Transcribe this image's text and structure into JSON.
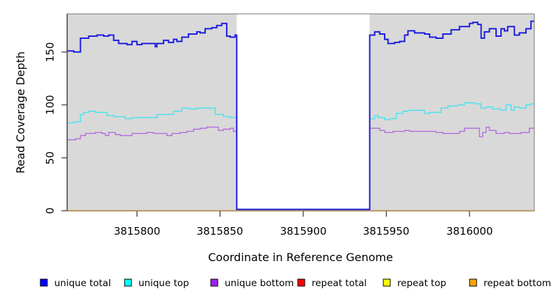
{
  "chart_data": {
    "type": "line",
    "subtype": "step-coverage",
    "title": "",
    "xlabel": "Coordinate in Reference Genome",
    "ylabel": "Read Coverage Depth",
    "xlim": [
      3815758,
      3816039
    ],
    "ylim": [
      0,
      186
    ],
    "x_ticks": [
      3815800,
      3815850,
      3815900,
      3815950,
      3816000
    ],
    "x_tick_labels": [
      "3815800",
      "3815850",
      "3815900",
      "3815950",
      "3816000"
    ],
    "y_ticks": [
      0,
      50,
      100,
      150
    ],
    "y_tick_labels": [
      "0",
      "50",
      "100",
      "150"
    ],
    "grid": false,
    "legend_position": "bottom",
    "plot_bg_color": "#D9D9D9",
    "border_color": "#8A8A8A",
    "axis_color": "#404040",
    "gap_region": [
      3815860,
      3815940
    ],
    "data_regions": [
      [
        3815758,
        3815860
      ],
      [
        3815940,
        3816039
      ]
    ],
    "series": [
      {
        "name": "unique total",
        "color": "#0000FF",
        "line_color": "#1C1CDE",
        "width": 2,
        "gap_lift": 2,
        "regions": [
          [
            [
              3815758,
              151
            ],
            [
              3815762,
              150
            ],
            [
              3815766,
              163
            ],
            [
              3815771,
              165
            ],
            [
              3815776,
              166
            ],
            [
              3815780,
              165
            ],
            [
              3815783,
              166
            ],
            [
              3815786,
              161
            ],
            [
              3815789,
              158
            ],
            [
              3815794,
              157
            ],
            [
              3815797,
              160
            ],
            [
              3815800,
              157
            ],
            [
              3815803,
              158
            ],
            [
              3815811,
              155
            ],
            [
              3815812,
              158
            ],
            [
              3815816,
              161
            ],
            [
              3815819,
              159
            ],
            [
              3815822,
              162
            ],
            [
              3815824,
              160
            ],
            [
              3815827,
              164
            ],
            [
              3815831,
              167
            ],
            [
              3815836,
              169
            ],
            [
              3815838,
              168
            ],
            [
              3815841,
              172
            ],
            [
              3815845,
              173
            ],
            [
              3815848,
              175
            ],
            [
              3815851,
              177
            ],
            [
              3815854,
              165
            ],
            [
              3815856,
              164
            ],
            [
              3815859,
              166
            ]
          ],
          [
            [
              3815940,
              166
            ],
            [
              3815943,
              169
            ],
            [
              3815946,
              167
            ],
            [
              3815949,
              162
            ],
            [
              3815951,
              158
            ],
            [
              3815955,
              159
            ],
            [
              3815958,
              160
            ],
            [
              3815961,
              166
            ],
            [
              3815963,
              170
            ],
            [
              3815967,
              168
            ],
            [
              3815973,
              167
            ],
            [
              3815976,
              164
            ],
            [
              3815980,
              163
            ],
            [
              3815984,
              167
            ],
            [
              3815989,
              171
            ],
            [
              3815994,
              174
            ],
            [
              3816000,
              177
            ],
            [
              3816002,
              178
            ],
            [
              3816005,
              176
            ],
            [
              3816007,
              163
            ],
            [
              3816009,
              169
            ],
            [
              3816012,
              172
            ],
            [
              3816016,
              165
            ],
            [
              3816019,
              172
            ],
            [
              3816021,
              170
            ],
            [
              3816023,
              174
            ],
            [
              3816027,
              166
            ],
            [
              3816030,
              168
            ],
            [
              3816034,
              172
            ],
            [
              3816037,
              179
            ]
          ]
        ]
      },
      {
        "name": "unique top",
        "color": "#00FFFF",
        "line_color": "#4FE2EC",
        "width": 1.5,
        "gap_lift": 1,
        "regions": [
          [
            [
              3815758,
              83
            ],
            [
              3815762,
              84
            ],
            [
              3815766,
              91
            ],
            [
              3815768,
              93
            ],
            [
              3815771,
              94
            ],
            [
              3815775,
              93
            ],
            [
              3815782,
              90
            ],
            [
              3815786,
              89
            ],
            [
              3815793,
              87
            ],
            [
              3815797,
              88
            ],
            [
              3815800,
              88
            ],
            [
              3815812,
              91
            ],
            [
              3815822,
              94
            ],
            [
              3815827,
              97
            ],
            [
              3815832,
              96
            ],
            [
              3815836,
              97
            ],
            [
              3815847,
              91
            ],
            [
              3815852,
              89
            ],
            [
              3815856,
              88
            ]
          ],
          [
            [
              3815940,
              87
            ],
            [
              3815943,
              90
            ],
            [
              3815945,
              88
            ],
            [
              3815949,
              86
            ],
            [
              3815952,
              87
            ],
            [
              3815956,
              92
            ],
            [
              3815960,
              94
            ],
            [
              3815963,
              95
            ],
            [
              3815973,
              92
            ],
            [
              3815976,
              93
            ],
            [
              3815983,
              97
            ],
            [
              3815987,
              99
            ],
            [
              3815993,
              100
            ],
            [
              3815997,
              102
            ],
            [
              3816003,
              101
            ],
            [
              3816007,
              97
            ],
            [
              3816010,
              98
            ],
            [
              3816014,
              96
            ],
            [
              3816019,
              95
            ],
            [
              3816022,
              100
            ],
            [
              3816025,
              95
            ],
            [
              3816027,
              98
            ],
            [
              3816030,
              97
            ],
            [
              3816034,
              100
            ],
            [
              3816037,
              101
            ]
          ]
        ]
      },
      {
        "name": "unique bottom",
        "color": "#A020F0",
        "line_color": "#B26EDC",
        "width": 1.4,
        "gap_lift": 1,
        "regions": [
          [
            [
              3815758,
              67
            ],
            [
              3815763,
              68
            ],
            [
              3815766,
              71
            ],
            [
              3815769,
              73
            ],
            [
              3815775,
              74
            ],
            [
              3815779,
              73
            ],
            [
              3815781,
              71
            ],
            [
              3815783,
              74
            ],
            [
              3815787,
              72
            ],
            [
              3815790,
              71
            ],
            [
              3815797,
              73
            ],
            [
              3815806,
              74
            ],
            [
              3815810,
              73
            ],
            [
              3815818,
              71
            ],
            [
              3815821,
              73
            ],
            [
              3815826,
              74
            ],
            [
              3815830,
              75
            ],
            [
              3815834,
              77
            ],
            [
              3815838,
              78
            ],
            [
              3815842,
              79
            ],
            [
              3815847,
              79
            ],
            [
              3815849,
              76
            ],
            [
              3815852,
              77
            ],
            [
              3815856,
              78
            ],
            [
              3815858,
              75
            ]
          ],
          [
            [
              3815940,
              78
            ],
            [
              3815946,
              76
            ],
            [
              3815949,
              74
            ],
            [
              3815954,
              75
            ],
            [
              3815961,
              76
            ],
            [
              3815964,
              75
            ],
            [
              3815971,
              75
            ],
            [
              3815980,
              74
            ],
            [
              3815984,
              73
            ],
            [
              3815994,
              75
            ],
            [
              3815997,
              78
            ],
            [
              3816004,
              78
            ],
            [
              3816006,
              70
            ],
            [
              3816008,
              74
            ],
            [
              3816010,
              79
            ],
            [
              3816012,
              76
            ],
            [
              3816016,
              73
            ],
            [
              3816021,
              74
            ],
            [
              3816024,
              73
            ],
            [
              3816028,
              73
            ],
            [
              3816031,
              74
            ],
            [
              3816036,
              78
            ]
          ]
        ]
      },
      {
        "name": "repeat total",
        "color": "#FF0000",
        "line_color": "#FF0000",
        "width": 1.4,
        "flat_zero": true
      },
      {
        "name": "repeat top",
        "color": "#FFFF00",
        "line_color": "#FFFF00",
        "width": 1.4,
        "flat_zero": true
      },
      {
        "name": "repeat bottom",
        "color": "#FFA500",
        "line_color": "#FFA500",
        "width": 1.7,
        "flat_zero": true
      }
    ]
  },
  "legend": {
    "items": [
      {
        "label": "unique total",
        "color": "#0000FF"
      },
      {
        "label": "unique top",
        "color": "#00FFFF"
      },
      {
        "label": "unique bottom",
        "color": "#A020F0"
      },
      {
        "label": "repeat total",
        "color": "#FF0000"
      },
      {
        "label": "repeat top",
        "color": "#FFFF00"
      },
      {
        "label": "repeat bottom",
        "color": "#FFA500"
      }
    ]
  }
}
